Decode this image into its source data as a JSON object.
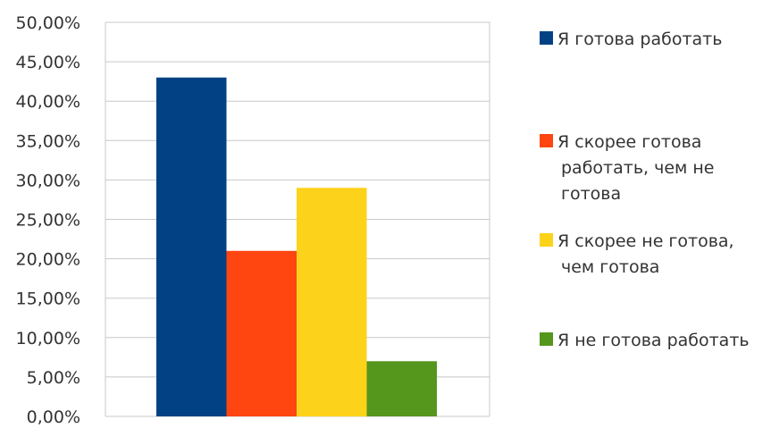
{
  "chart_data": {
    "type": "bar",
    "categories": [
      ""
    ],
    "series": [
      {
        "name": "Я готова работать",
        "values": [
          0.43
        ],
        "color": "#024284"
      },
      {
        "name": "Я скорее готова работать, чем не готова",
        "values": [
          0.21
        ],
        "color": "#FF4510"
      },
      {
        "name": "Я скорее не готова, чем готова",
        "values": [
          0.29
        ],
        "color": "#FDD21B"
      },
      {
        "name": "Я не готова работать",
        "values": [
          0.07
        ],
        "color": "#55961D"
      }
    ],
    "legend_lines": [
      [
        "Я готова работать"
      ],
      [
        "Я скорее готова",
        "работать, чем не",
        "готова"
      ],
      [
        "Я скорее не готова,",
        "чем готова"
      ],
      [
        "Я не готова работать"
      ]
    ],
    "yticks": [
      "0,00%",
      "5,00%",
      "10,00%",
      "15,00%",
      "20,00%",
      "25,00%",
      "30,00%",
      "35,00%",
      "40,00%",
      "45,00%",
      "50,00%"
    ],
    "ylim": [
      0,
      0.5
    ],
    "grid": true,
    "legend_position": "right",
    "colors": {
      "grid": "#c8c8c8",
      "plot_border": "#c8c8c8",
      "text": "#333333"
    }
  }
}
